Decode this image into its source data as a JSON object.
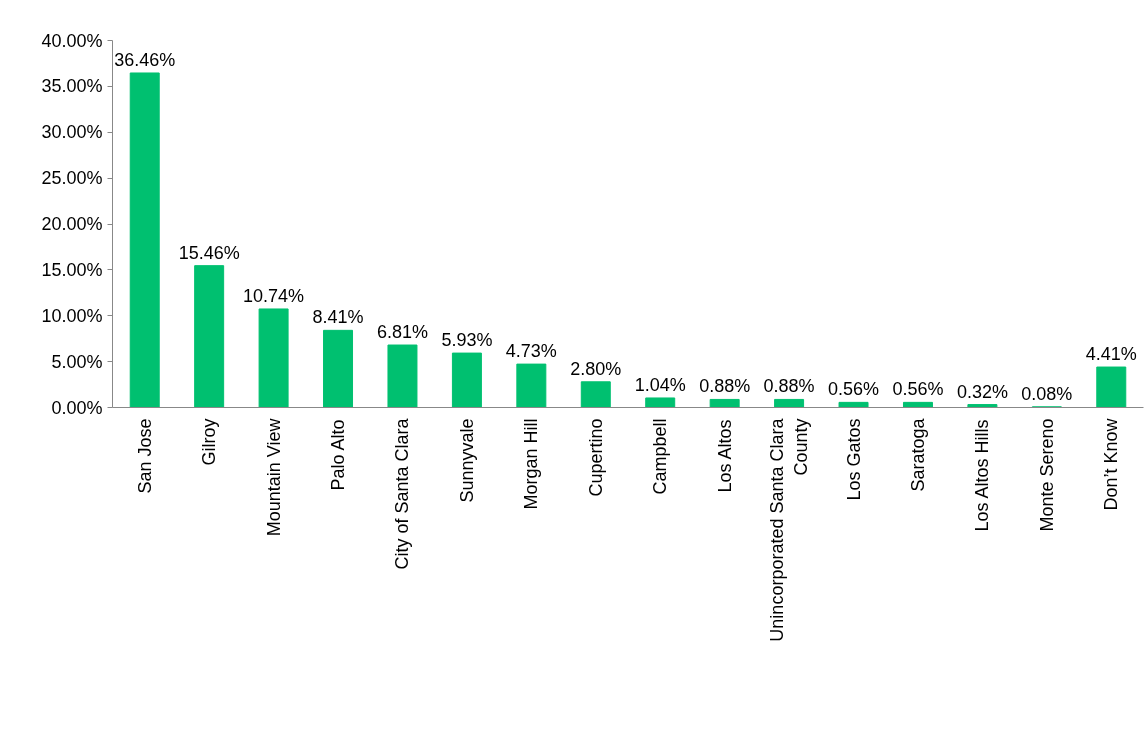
{
  "chart_data": {
    "type": "bar",
    "categories": [
      "San Jose",
      "Gilroy",
      "Mountain View",
      "Palo Alto",
      "City of Santa Clara",
      "Sunnyvale",
      "Morgan Hill",
      "Cupertino",
      "Campbell",
      "Los Altos",
      "Unincorporated Santa Clara County",
      "Los Gatos",
      "Saratoga",
      "Los Altos Hills",
      "Monte Sereno",
      "Don’t Know"
    ],
    "values": [
      36.46,
      15.46,
      10.74,
      8.41,
      6.81,
      5.93,
      4.73,
      2.8,
      1.04,
      0.88,
      0.88,
      0.56,
      0.56,
      0.32,
      0.08,
      4.41
    ],
    "value_labels": [
      "36.46%",
      "15.46%",
      "10.74%",
      "8.41%",
      "6.81%",
      "5.93%",
      "4.73%",
      "2.80%",
      "1.04%",
      "0.88%",
      "0.88%",
      "0.56%",
      "0.56%",
      "0.32%",
      "0.08%",
      "4.41%"
    ],
    "color": "#00c070",
    "ylim": [
      0,
      40
    ],
    "yticks": [
      {
        "value": 0,
        "label": "0.00%"
      },
      {
        "value": 5,
        "label": "5.00%"
      },
      {
        "value": 10,
        "label": "10.00%"
      },
      {
        "value": 15,
        "label": "15.00%"
      },
      {
        "value": 20,
        "label": "20.00%"
      },
      {
        "value": 25,
        "label": "25.00%"
      },
      {
        "value": 30,
        "label": "30.00%"
      },
      {
        "value": 35,
        "label": "35.00%"
      },
      {
        "value": 40,
        "label": "40.00%"
      }
    ],
    "grid": false
  }
}
